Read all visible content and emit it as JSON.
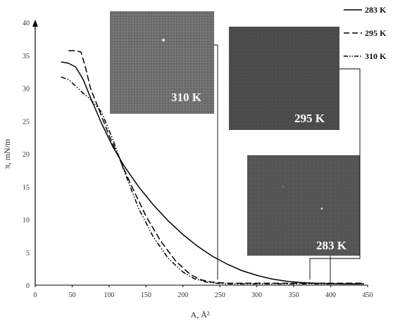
{
  "chart_data": {
    "type": "line",
    "title": "",
    "xlabel": "A, Å²",
    "ylabel": "π, mN/m",
    "xlim": [
      0,
      450
    ],
    "ylim": [
      0,
      40
    ],
    "x_ticks": [
      0,
      50,
      100,
      150,
      200,
      250,
      300,
      350,
      400,
      450
    ],
    "y_ticks": [
      0,
      5,
      10,
      15,
      20,
      25,
      30,
      35,
      40
    ],
    "grid": false,
    "legend_position": "top-right",
    "series": [
      {
        "name": "283 K",
        "style": "solid",
        "color": "#000000",
        "x": [
          35,
          45,
          55,
          65,
          75,
          90,
          105,
          120,
          140,
          160,
          180,
          200,
          220,
          240,
          260,
          280,
          300,
          320,
          340,
          360,
          380,
          400,
          420,
          445
        ],
        "y": [
          34.0,
          33.8,
          33.2,
          31.3,
          28.5,
          24.6,
          21.1,
          18.2,
          15.0,
          12.2,
          9.8,
          7.7,
          5.9,
          4.4,
          3.2,
          2.2,
          1.5,
          0.95,
          0.6,
          0.4,
          0.3,
          0.25,
          0.2,
          0.2
        ]
      },
      {
        "name": "295 K",
        "style": "dashed",
        "color": "#000000",
        "x": [
          45,
          55,
          62,
          68,
          75,
          85,
          100,
          115,
          130,
          150,
          170,
          190,
          210,
          225,
          240,
          260,
          280,
          300,
          340,
          380,
          420,
          445
        ],
        "y": [
          35.7,
          35.7,
          35.5,
          33.2,
          29.9,
          27.1,
          22.8,
          19.0,
          15.2,
          10.5,
          6.7,
          3.7,
          1.6,
          0.8,
          0.45,
          0.3,
          0.3,
          0.3,
          0.3,
          0.3,
          0.3,
          0.3
        ]
      },
      {
        "name": "310 K",
        "style": "dash-dot-dot",
        "color": "#000000",
        "x": [
          35,
          45,
          55,
          65,
          75,
          90,
          105,
          120,
          140,
          160,
          180,
          200,
          215,
          230,
          245,
          260,
          300,
          350,
          400,
          445
        ],
        "y": [
          31.7,
          31.3,
          30.3,
          29.2,
          28.3,
          26.3,
          22.2,
          17.5,
          11.7,
          7.3,
          4.1,
          2.0,
          1.0,
          0.5,
          0.3,
          0.2,
          0.2,
          0.2,
          0.2,
          0.2
        ]
      }
    ],
    "insets": [
      {
        "label": "310 K",
        "image_description": "Brewster angle microscopy image, speckled mid-gray field",
        "pointer_x": 250
      },
      {
        "label": "295 K",
        "image_description": "Brewster angle microscopy image, uniform dark-gray field",
        "pointer_x": 375
      },
      {
        "label": "283 K",
        "image_description": "Brewster angle microscopy image, gray field with domains",
        "pointer_x": 397
      }
    ]
  },
  "colors": {
    "line": "#000000",
    "axis": "#000000",
    "inset_310": "#6c6c6c",
    "inset_295": "#4a4a4a",
    "inset_283": "#545454"
  }
}
